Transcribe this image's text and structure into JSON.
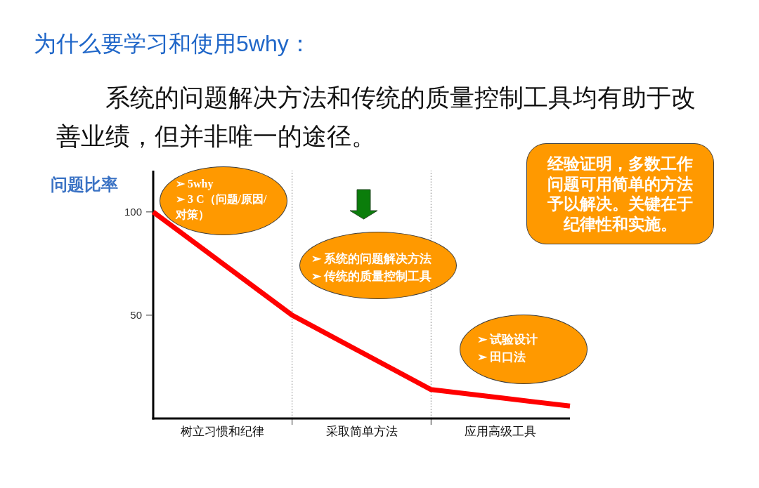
{
  "chart_data": {
    "type": "line",
    "title": "为什么要学习和使用5why：",
    "subtitle": "系统的问题解决方法和传统的质量控制工具均有助于改善业绩，但并非唯一的途径。",
    "ylabel": "问题比率",
    "categories": [
      null,
      "树立习惯和纪律",
      null,
      "采取简单方法",
      null,
      "应用高级工具",
      null
    ],
    "ylim": [
      0,
      120
    ],
    "yticks": [
      50,
      100
    ],
    "series": [
      {
        "color": "#ff0000",
        "values": [
          100,
          75,
          50,
          32,
          14,
          10,
          6
        ]
      }
    ],
    "line_style": "solid",
    "annotations": [
      "➢ 5why\n➢ 3 C（问题/原因/对策）",
      "➢ 系统的问题解决方法\n➢ 传统的质量控制工具",
      "➢ 试验设计\n➢ 田口法",
      "经验证明，多数工作问题可用简单的方法予以解决。关键在于纪律性和实施。"
    ]
  }
}
